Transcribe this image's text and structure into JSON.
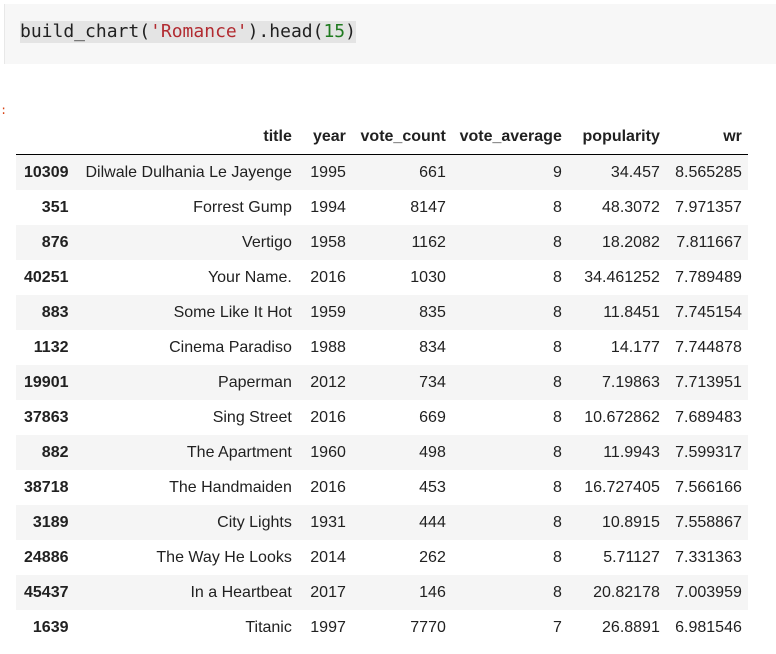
{
  "code_cell": {
    "prefix": "build_chart(",
    "string_arg": "'Romance'",
    "middle": ").head(",
    "number_arg": "15",
    "suffix": ")"
  },
  "output_prompt": ":",
  "table": {
    "columns": [
      "title",
      "year",
      "vote_count",
      "vote_average",
      "popularity",
      "wr"
    ],
    "rows": [
      {
        "index": "10309",
        "title": "Dilwale Dulhania Le Jayenge",
        "year": "1995",
        "vote_count": "661",
        "vote_average": "9",
        "popularity": "34.457",
        "wr": "8.565285"
      },
      {
        "index": "351",
        "title": "Forrest Gump",
        "year": "1994",
        "vote_count": "8147",
        "vote_average": "8",
        "popularity": "48.3072",
        "wr": "7.971357"
      },
      {
        "index": "876",
        "title": "Vertigo",
        "year": "1958",
        "vote_count": "1162",
        "vote_average": "8",
        "popularity": "18.2082",
        "wr": "7.811667"
      },
      {
        "index": "40251",
        "title": "Your Name.",
        "year": "2016",
        "vote_count": "1030",
        "vote_average": "8",
        "popularity": "34.461252",
        "wr": "7.789489"
      },
      {
        "index": "883",
        "title": "Some Like It Hot",
        "year": "1959",
        "vote_count": "835",
        "vote_average": "8",
        "popularity": "11.8451",
        "wr": "7.745154"
      },
      {
        "index": "1132",
        "title": "Cinema Paradiso",
        "year": "1988",
        "vote_count": "834",
        "vote_average": "8",
        "popularity": "14.177",
        "wr": "7.744878"
      },
      {
        "index": "19901",
        "title": "Paperman",
        "year": "2012",
        "vote_count": "734",
        "vote_average": "8",
        "popularity": "7.19863",
        "wr": "7.713951"
      },
      {
        "index": "37863",
        "title": "Sing Street",
        "year": "2016",
        "vote_count": "669",
        "vote_average": "8",
        "popularity": "10.672862",
        "wr": "7.689483"
      },
      {
        "index": "882",
        "title": "The Apartment",
        "year": "1960",
        "vote_count": "498",
        "vote_average": "8",
        "popularity": "11.9943",
        "wr": "7.599317"
      },
      {
        "index": "38718",
        "title": "The Handmaiden",
        "year": "2016",
        "vote_count": "453",
        "vote_average": "8",
        "popularity": "16.727405",
        "wr": "7.566166"
      },
      {
        "index": "3189",
        "title": "City Lights",
        "year": "1931",
        "vote_count": "444",
        "vote_average": "8",
        "popularity": "10.8915",
        "wr": "7.558867"
      },
      {
        "index": "24886",
        "title": "The Way He Looks",
        "year": "2014",
        "vote_count": "262",
        "vote_average": "8",
        "popularity": "5.71127",
        "wr": "7.331363"
      },
      {
        "index": "45437",
        "title": "In a Heartbeat",
        "year": "2017",
        "vote_count": "146",
        "vote_average": "8",
        "popularity": "20.82178",
        "wr": "7.003959"
      },
      {
        "index": "1639",
        "title": "Titanic",
        "year": "1997",
        "vote_count": "7770",
        "vote_average": "7",
        "popularity": "26.8891",
        "wr": "6.981546"
      }
    ]
  }
}
